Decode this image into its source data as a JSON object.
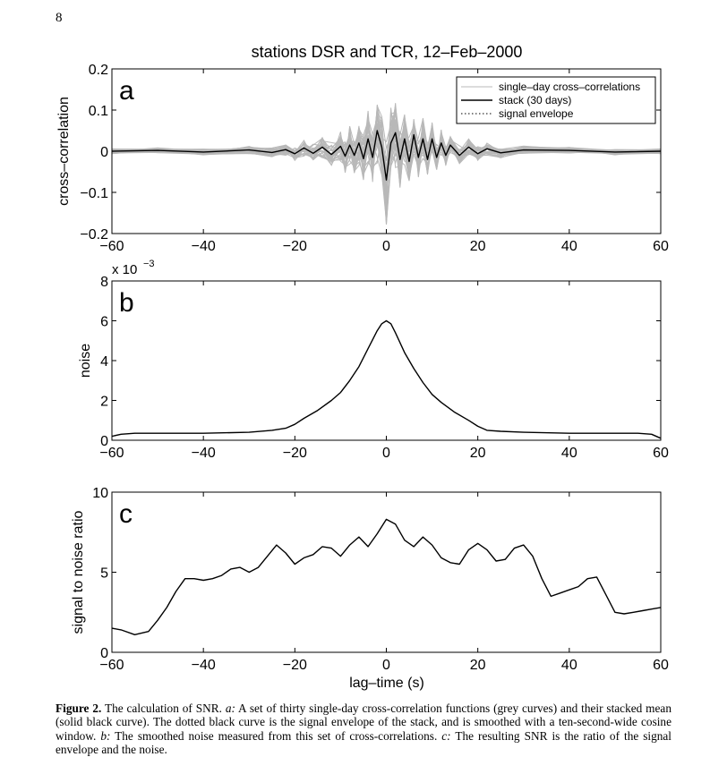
{
  "page": {
    "number": "8"
  },
  "figure": {
    "title": "stations DSR and TCR, 12–Feb–2000",
    "xlabel": "lag–time (s)"
  },
  "chart_data": [
    {
      "type": "line",
      "panel_letter": "a",
      "ylabel": "cross–correlation",
      "xlim": [
        -60,
        60
      ],
      "ylim": [
        -0.2,
        0.2
      ],
      "xticks": [
        -60,
        -40,
        -20,
        0,
        20,
        40,
        60
      ],
      "xtick_labels": [
        "−60",
        "−40",
        "−20",
        "0",
        "20",
        "40",
        "60"
      ],
      "yticks": [
        -0.2,
        -0.1,
        0,
        0.1,
        0.2
      ],
      "ytick_labels": [
        "−0.2",
        "−0.1",
        "0",
        "0.1",
        "0.2"
      ],
      "legend": {
        "placement": "top-right",
        "entries": [
          {
            "label": "single–day cross–correlations",
            "style": "grey"
          },
          {
            "label": "stack (30 days)",
            "style": "black"
          },
          {
            "label": "signal envelope",
            "style": "dotted"
          }
        ]
      },
      "series": [
        {
          "name": "stack (30 days)",
          "color": "#000000",
          "x": [
            -60,
            -50,
            -40,
            -30,
            -25,
            -22,
            -20,
            -18,
            -16,
            -14,
            -12,
            -10,
            -9,
            -8,
            -7,
            -6,
            -5,
            -4,
            -3,
            -2,
            -1,
            0,
            1,
            2,
            3,
            4,
            5,
            6,
            7,
            8,
            9,
            10,
            11,
            12,
            13,
            14,
            16,
            18,
            20,
            22,
            25,
            30,
            40,
            50,
            60
          ],
          "y": [
            0,
            0.002,
            -0.002,
            0.003,
            -0.003,
            0.004,
            -0.006,
            0.008,
            -0.005,
            0.01,
            -0.008,
            0.012,
            -0.012,
            0.015,
            -0.01,
            0.02,
            -0.018,
            0.03,
            -0.015,
            0.05,
            0.01,
            -0.07,
            0.02,
            0.045,
            -0.02,
            0.03,
            -0.025,
            0.04,
            -0.015,
            0.03,
            -0.02,
            0.03,
            -0.015,
            0.02,
            -0.01,
            0.015,
            -0.01,
            0.01,
            -0.006,
            0.006,
            -0.004,
            0.003,
            0.002,
            -0.002,
            0
          ]
        }
      ]
    },
    {
      "type": "line",
      "panel_letter": "b",
      "ylabel": "noise",
      "exponent_label": "x 10",
      "exponent_power": "−3",
      "xlim": [
        -60,
        60
      ],
      "ylim": [
        0,
        8
      ],
      "xticks": [
        -60,
        -40,
        -20,
        0,
        20,
        40,
        60
      ],
      "xtick_labels": [
        "−60",
        "−40",
        "−20",
        "0",
        "20",
        "40",
        "60"
      ],
      "yticks": [
        0,
        2,
        4,
        6,
        8
      ],
      "ytick_labels": [
        "0",
        "2",
        "4",
        "6",
        "8"
      ],
      "series": [
        {
          "name": "noise (x10^-3)",
          "color": "#000000",
          "x": [
            -60,
            -58,
            -55,
            -50,
            -40,
            -30,
            -25,
            -22,
            -20,
            -18,
            -15,
            -12,
            -10,
            -8,
            -6,
            -4,
            -2,
            -1,
            0,
            1,
            2,
            4,
            6,
            8,
            10,
            12,
            15,
            18,
            20,
            22,
            25,
            30,
            40,
            50,
            55,
            58,
            60
          ],
          "y": [
            0.2,
            0.3,
            0.35,
            0.35,
            0.35,
            0.4,
            0.5,
            0.6,
            0.8,
            1.1,
            1.5,
            2.0,
            2.4,
            3.0,
            3.7,
            4.6,
            5.5,
            5.85,
            6.0,
            5.85,
            5.4,
            4.4,
            3.6,
            2.9,
            2.3,
            1.9,
            1.4,
            1.0,
            0.7,
            0.5,
            0.45,
            0.4,
            0.35,
            0.35,
            0.35,
            0.3,
            0.1
          ]
        }
      ]
    },
    {
      "type": "line",
      "panel_letter": "c",
      "ylabel": "signal to noise ratio",
      "xlim": [
        -60,
        60
      ],
      "ylim": [
        0,
        10
      ],
      "xticks": [
        -60,
        -40,
        -20,
        0,
        20,
        40,
        60
      ],
      "xtick_labels": [
        "−60",
        "−40",
        "−20",
        "0",
        "20",
        "40",
        "60"
      ],
      "yticks": [
        0,
        5,
        10
      ],
      "ytick_labels": [
        "0",
        "5",
        "10"
      ],
      "series": [
        {
          "name": "SNR",
          "color": "#000000",
          "x": [
            -60,
            -58,
            -55,
            -52,
            -50,
            -48,
            -46,
            -44,
            -42,
            -40,
            -38,
            -36,
            -34,
            -32,
            -30,
            -28,
            -26,
            -24,
            -22,
            -20,
            -18,
            -16,
            -14,
            -12,
            -10,
            -8,
            -6,
            -4,
            -2,
            0,
            2,
            4,
            6,
            8,
            10,
            12,
            14,
            16,
            18,
            20,
            22,
            24,
            26,
            28,
            30,
            32,
            34,
            36,
            38,
            40,
            42,
            44,
            46,
            48,
            50,
            52,
            54,
            56,
            58,
            60
          ],
          "y": [
            1.5,
            1.4,
            1.1,
            1.3,
            2.0,
            2.8,
            3.8,
            4.6,
            4.6,
            4.5,
            4.6,
            4.8,
            5.2,
            5.3,
            5.0,
            5.3,
            6.0,
            6.7,
            6.2,
            5.5,
            5.9,
            6.1,
            6.6,
            6.5,
            6.0,
            6.7,
            7.2,
            6.6,
            7.4,
            8.3,
            8.0,
            7.0,
            6.6,
            7.2,
            6.7,
            5.9,
            5.6,
            5.5,
            6.4,
            6.8,
            6.4,
            5.7,
            5.8,
            6.5,
            6.7,
            6.0,
            4.6,
            3.5,
            3.7,
            3.9,
            4.1,
            4.6,
            4.7,
            3.6,
            2.5,
            2.4,
            2.5,
            2.6,
            2.7,
            2.8
          ]
        }
      ]
    }
  ],
  "caption": {
    "label": "Figure 2.",
    "text_1": " The calculation of SNR. ",
    "italic_a": "a:",
    "text_2": " A set of thirty single-day cross-correlation functions (grey curves) and their stacked mean (solid black curve). The dotted black curve is the signal envelope of the stack, and is smoothed with a ten-second-wide cosine window. ",
    "italic_b": "b:",
    "text_3": " The smoothed noise measured from this set of cross-correlations. ",
    "italic_c": "c:",
    "text_4": " The resulting SNR is the ratio of the signal envelope and the noise."
  }
}
